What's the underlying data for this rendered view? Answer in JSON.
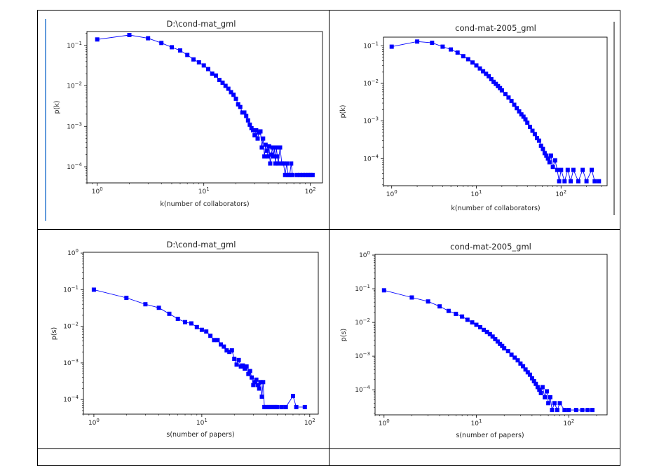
{
  "chart_data": [
    {
      "type": "line",
      "title": "D:\\cond-mat_gml",
      "xlabel": "k(number of collaborators)",
      "ylabel": "p(k)",
      "xscale": "log",
      "yscale": "log",
      "xlim": [
        0.8,
        130
      ],
      "ylim": [
        4e-05,
        0.22
      ],
      "xticks": [
        {
          "v": 1,
          "m": "0"
        },
        {
          "v": 10,
          "m": "1"
        },
        {
          "v": 100,
          "m": "2"
        }
      ],
      "yticks": [
        {
          "v": 0.1,
          "m": "−1"
        },
        {
          "v": 0.01,
          "m": "−2"
        },
        {
          "v": 0.001,
          "m": "−3"
        },
        {
          "v": 0.0001,
          "m": "−4"
        }
      ],
      "legend": "none",
      "color": "#0000ff",
      "series": [
        {
          "name": "p(k)",
          "points": [
            [
              1,
              0.14
            ],
            [
              2,
              0.18
            ],
            [
              3,
              0.15
            ],
            [
              4,
              0.115
            ],
            [
              5,
              0.09
            ],
            [
              6,
              0.075
            ],
            [
              7,
              0.058
            ],
            [
              8,
              0.045
            ],
            [
              9,
              0.038
            ],
            [
              10,
              0.032
            ],
            [
              11,
              0.026
            ],
            [
              12,
              0.02
            ],
            [
              13,
              0.018
            ],
            [
              14,
              0.014
            ],
            [
              15,
              0.012
            ],
            [
              16,
              0.01
            ],
            [
              17,
              0.0085
            ],
            [
              18,
              0.007
            ],
            [
              19,
              0.006
            ],
            [
              20,
              0.0048
            ],
            [
              21,
              0.0035
            ],
            [
              22,
              0.003
            ],
            [
              23,
              0.0022
            ],
            [
              24,
              0.0022
            ],
            [
              25,
              0.0018
            ],
            [
              26,
              0.0014
            ],
            [
              27,
              0.0011
            ],
            [
              28,
              0.0009
            ],
            [
              29,
              0.0008
            ],
            [
              30,
              0.0006
            ],
            [
              31,
              0.0008
            ],
            [
              32,
              0.0005
            ],
            [
              33,
              0.0007
            ],
            [
              34,
              0.00075
            ],
            [
              35,
              0.0003
            ],
            [
              36,
              0.0005
            ],
            [
              37,
              0.00018
            ],
            [
              38,
              0.00035
            ],
            [
              39,
              0.00025
            ],
            [
              40,
              0.00018
            ],
            [
              41,
              0.00032
            ],
            [
              42,
              0.00012
            ],
            [
              43,
              0.0002
            ],
            [
              44,
              0.0003
            ],
            [
              45,
              0.00018
            ],
            [
              46,
              0.0003
            ],
            [
              47,
              0.00012
            ],
            [
              48,
              0.0003
            ],
            [
              49,
              0.00018
            ],
            [
              50,
              0.00012
            ],
            [
              52,
              0.0003
            ],
            [
              54,
              0.00012
            ],
            [
              56,
              0.00012
            ],
            [
              58,
              6.25e-05
            ],
            [
              60,
              0.00012
            ],
            [
              62,
              6.25e-05
            ],
            [
              64,
              6.25e-05
            ],
            [
              66,
              0.00012
            ],
            [
              68,
              6.25e-05
            ],
            [
              75,
              6.25e-05
            ],
            [
              80,
              6.25e-05
            ],
            [
              85,
              6.25e-05
            ],
            [
              90,
              6.25e-05
            ],
            [
              95,
              6.25e-05
            ],
            [
              100,
              6.25e-05
            ],
            [
              105,
              6.25e-05
            ]
          ]
        }
      ]
    },
    {
      "type": "line",
      "title": "cond-mat-2005_gml",
      "xlabel": "k(number of collaborators)",
      "ylabel": "p(k)",
      "xscale": "log",
      "yscale": "log",
      "xlim": [
        0.8,
        350
      ],
      "ylim": [
        1.9e-05,
        0.17
      ],
      "xticks": [
        {
          "v": 1,
          "m": "0"
        },
        {
          "v": 10,
          "m": "1"
        },
        {
          "v": 100,
          "m": "2"
        }
      ],
      "yticks": [
        {
          "v": 0.1,
          "m": "−1"
        },
        {
          "v": 0.01,
          "m": "−2"
        },
        {
          "v": 0.001,
          "m": "−3"
        },
        {
          "v": 0.0001,
          "m": "−4"
        }
      ],
      "legend": "none",
      "color": "#0000ff",
      "series": [
        {
          "name": "p(k)",
          "points": [
            [
              1,
              0.095
            ],
            [
              2,
              0.13
            ],
            [
              3,
              0.12
            ],
            [
              4,
              0.095
            ],
            [
              5,
              0.08
            ],
            [
              6,
              0.066
            ],
            [
              7,
              0.053
            ],
            [
              8,
              0.044
            ],
            [
              9,
              0.036
            ],
            [
              10,
              0.03
            ],
            [
              11,
              0.025
            ],
            [
              12,
              0.021
            ],
            [
              13,
              0.018
            ],
            [
              14,
              0.0155
            ],
            [
              15,
              0.013
            ],
            [
              16,
              0.011
            ],
            [
              17,
              0.0097
            ],
            [
              18,
              0.0085
            ],
            [
              19,
              0.0075
            ],
            [
              20,
              0.0065
            ],
            [
              22,
              0.0052
            ],
            [
              24,
              0.0042
            ],
            [
              26,
              0.0034
            ],
            [
              28,
              0.0027
            ],
            [
              30,
              0.0022
            ],
            [
              32,
              0.0018
            ],
            [
              34,
              0.0015
            ],
            [
              36,
              0.0013
            ],
            [
              38,
              0.0011
            ],
            [
              40,
              0.0009
            ],
            [
              43,
              0.0007
            ],
            [
              46,
              0.00055
            ],
            [
              49,
              0.00045
            ],
            [
              52,
              0.00035
            ],
            [
              55,
              0.0003
            ],
            [
              58,
              0.00022
            ],
            [
              61,
              0.00018
            ],
            [
              64,
              0.00014
            ],
            [
              67,
              0.00012
            ],
            [
              70,
              0.0001
            ],
            [
              73,
              8e-05
            ],
            [
              76,
              0.00012
            ],
            [
              80,
              6e-05
            ],
            [
              85,
              9e-05
            ],
            [
              90,
              5e-05
            ],
            [
              95,
              2.5e-05
            ],
            [
              100,
              5e-05
            ],
            [
              110,
              2.5e-05
            ],
            [
              120,
              5e-05
            ],
            [
              130,
              2.5e-05
            ],
            [
              140,
              5e-05
            ],
            [
              160,
              2.5e-05
            ],
            [
              180,
              5e-05
            ],
            [
              200,
              2.5e-05
            ],
            [
              230,
              5e-05
            ],
            [
              250,
              2.5e-05
            ],
            [
              280,
              2.5e-05
            ]
          ]
        }
      ]
    },
    {
      "type": "line",
      "title": "D:\\cond-mat_gml",
      "xlabel": "s(number of papers)",
      "ylabel": "p(s)",
      "xscale": "log",
      "yscale": "log",
      "xlim": [
        0.8,
        120
      ],
      "ylim": [
        4e-05,
        1.05
      ],
      "xticks": [
        {
          "v": 1,
          "m": "0"
        },
        {
          "v": 10,
          "m": "1"
        },
        {
          "v": 100,
          "m": "2"
        }
      ],
      "yticks": [
        {
          "v": 1,
          "m": "0"
        },
        {
          "v": 0.1,
          "m": "−1"
        },
        {
          "v": 0.01,
          "m": "−2"
        },
        {
          "v": 0.001,
          "m": "−3"
        },
        {
          "v": 0.0001,
          "m": "−4"
        }
      ],
      "legend": "none",
      "color": "#0000ff",
      "series": [
        {
          "name": "p(s)",
          "points": [
            [
              1,
              0.1
            ],
            [
              2,
              0.06
            ],
            [
              3,
              0.04
            ],
            [
              4,
              0.032
            ],
            [
              5,
              0.022
            ],
            [
              6,
              0.016
            ],
            [
              7,
              0.013
            ],
            [
              8,
              0.012
            ],
            [
              9,
              0.0095
            ],
            [
              10,
              0.008
            ],
            [
              11,
              0.0072
            ],
            [
              12,
              0.0055
            ],
            [
              13,
              0.0042
            ],
            [
              14,
              0.0042
            ],
            [
              15,
              0.0032
            ],
            [
              16,
              0.0028
            ],
            [
              17,
              0.0022
            ],
            [
              18,
              0.002
            ],
            [
              19,
              0.0022
            ],
            [
              20,
              0.0013
            ],
            [
              21,
              0.0009
            ],
            [
              22,
              0.0012
            ],
            [
              23,
              0.0008
            ],
            [
              24,
              0.00085
            ],
            [
              25,
              0.0007
            ],
            [
              26,
              0.0008
            ],
            [
              27,
              0.0005
            ],
            [
              28,
              0.0006
            ],
            [
              29,
              0.0004
            ],
            [
              30,
              0.00025
            ],
            [
              31,
              0.0003
            ],
            [
              32,
              0.00035
            ],
            [
              33,
              0.00025
            ],
            [
              34,
              0.0002
            ],
            [
              35,
              0.0003
            ],
            [
              36,
              0.00012
            ],
            [
              37,
              0.0003
            ],
            [
              38,
              6.25e-05
            ],
            [
              40,
              6.25e-05
            ],
            [
              42,
              6.25e-05
            ],
            [
              44,
              6.25e-05
            ],
            [
              46,
              6.25e-05
            ],
            [
              48,
              6.25e-05
            ],
            [
              50,
              6.25e-05
            ],
            [
              55,
              6.25e-05
            ],
            [
              60,
              6.25e-05
            ],
            [
              70,
              0.000125
            ],
            [
              75,
              6.25e-05
            ],
            [
              90,
              6.25e-05
            ]
          ]
        }
      ]
    },
    {
      "type": "line",
      "title": "cond-mat-2005_gml",
      "xlabel": "s(number of papers)",
      "ylabel": "p(s)",
      "xscale": "log",
      "yscale": "log",
      "xlim": [
        0.8,
        260
      ],
      "ylim": [
        1.8e-05,
        1.05
      ],
      "xticks": [
        {
          "v": 1,
          "m": "0"
        },
        {
          "v": 10,
          "m": "1"
        },
        {
          "v": 100,
          "m": "2"
        }
      ],
      "yticks": [
        {
          "v": 1,
          "m": "0"
        },
        {
          "v": 0.1,
          "m": "−1"
        },
        {
          "v": 0.01,
          "m": "−2"
        },
        {
          "v": 0.001,
          "m": "−3"
        },
        {
          "v": 0.0001,
          "m": "−4"
        }
      ],
      "legend": "none",
      "color": "#0000ff",
      "series": [
        {
          "name": "p(s)",
          "points": [
            [
              1,
              0.09
            ],
            [
              2,
              0.055
            ],
            [
              3,
              0.042
            ],
            [
              4,
              0.03
            ],
            [
              5,
              0.022
            ],
            [
              6,
              0.018
            ],
            [
              7,
              0.015
            ],
            [
              8,
              0.012
            ],
            [
              9,
              0.01
            ],
            [
              10,
              0.0085
            ],
            [
              11,
              0.0072
            ],
            [
              12,
              0.006
            ],
            [
              13,
              0.0052
            ],
            [
              14,
              0.0045
            ],
            [
              15,
              0.0038
            ],
            [
              16,
              0.0032
            ],
            [
              17,
              0.0027
            ],
            [
              18,
              0.0023
            ],
            [
              19,
              0.002
            ],
            [
              20,
              0.0017
            ],
            [
              22,
              0.0014
            ],
            [
              24,
              0.0011
            ],
            [
              26,
              0.0009
            ],
            [
              28,
              0.00075
            ],
            [
              30,
              0.0006
            ],
            [
              32,
              0.0005
            ],
            [
              34,
              0.0004
            ],
            [
              36,
              0.00033
            ],
            [
              38,
              0.00028
            ],
            [
              40,
              0.00022
            ],
            [
              42,
              0.00018
            ],
            [
              44,
              0.00015
            ],
            [
              46,
              0.00012
            ],
            [
              48,
              0.0001
            ],
            [
              50,
              8e-05
            ],
            [
              52,
              0.00012
            ],
            [
              55,
              6e-05
            ],
            [
              58,
              9e-05
            ],
            [
              60,
              4e-05
            ],
            [
              63,
              6e-05
            ],
            [
              66,
              2.5e-05
            ],
            [
              70,
              4e-05
            ],
            [
              75,
              2.5e-05
            ],
            [
              80,
              4e-05
            ],
            [
              90,
              2.5e-05
            ],
            [
              100,
              2.5e-05
            ],
            [
              120,
              2.5e-05
            ],
            [
              140,
              2.5e-05
            ],
            [
              160,
              2.5e-05
            ],
            [
              180,
              2.5e-05
            ]
          ]
        }
      ]
    }
  ]
}
